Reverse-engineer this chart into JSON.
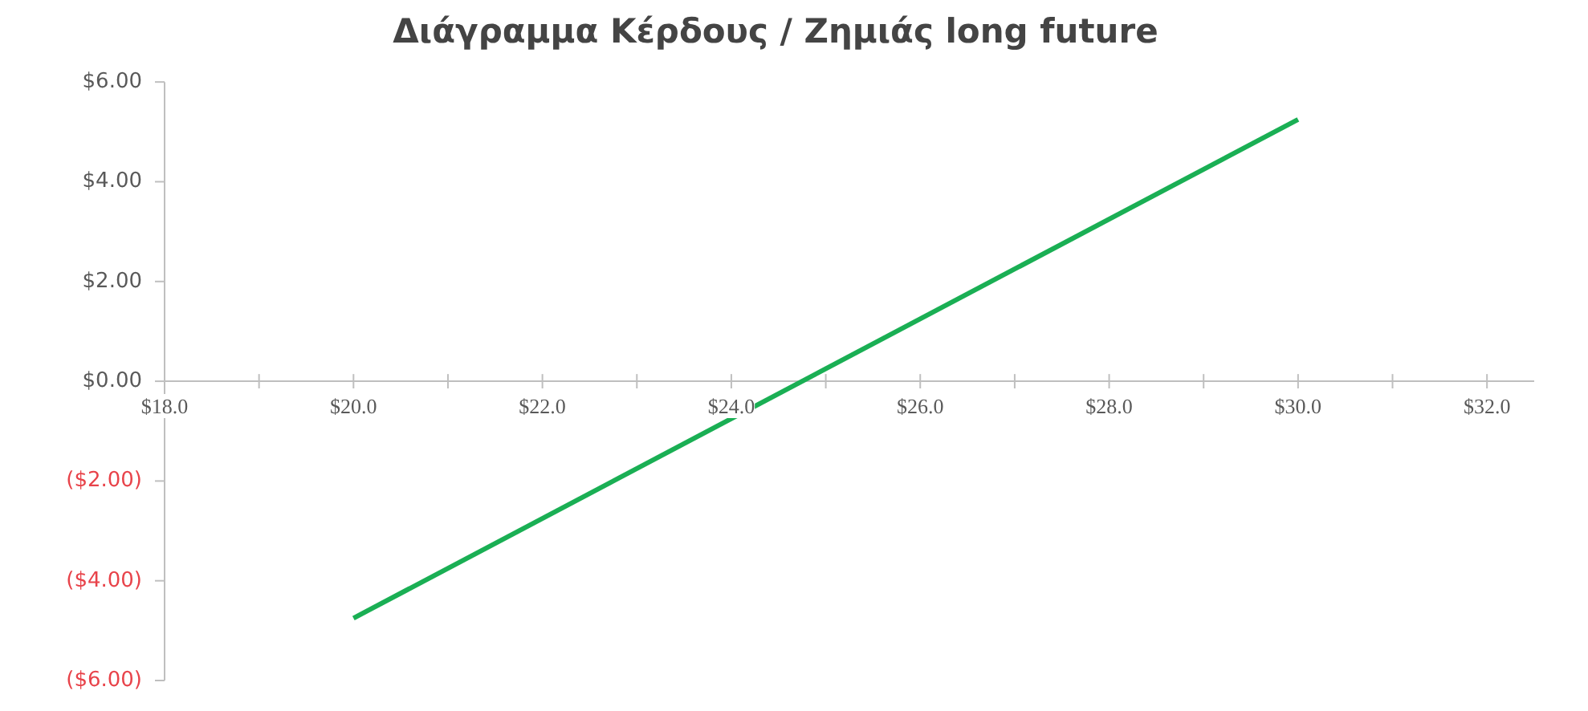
{
  "chart_data": {
    "type": "line",
    "title": "Διάγραμμα Κέρδους / Ζημιάς long future",
    "x": [
      20,
      30
    ],
    "series": [
      {
        "color": "#1aaf54",
        "values": [
          -4.75,
          5.25
        ]
      }
    ],
    "xlim": [
      18,
      32.5
    ],
    "xticks": [
      {
        "value": 18,
        "label": "$18.0"
      },
      {
        "value": 19,
        "label": null
      },
      {
        "value": 20,
        "label": "$20.0"
      },
      {
        "value": 21,
        "label": null
      },
      {
        "value": 22,
        "label": "$22.0"
      },
      {
        "value": 23,
        "label": null
      },
      {
        "value": 24,
        "label": "$24.0"
      },
      {
        "value": 25,
        "label": null
      },
      {
        "value": 26,
        "label": "$26.0"
      },
      {
        "value": 27,
        "label": null
      },
      {
        "value": 28,
        "label": "$28.0"
      },
      {
        "value": 29,
        "label": null
      },
      {
        "value": 30,
        "label": "$30.0"
      },
      {
        "value": 31,
        "label": null
      },
      {
        "value": 32,
        "label": "$32.0"
      }
    ],
    "ylim": [
      -6,
      6
    ],
    "yticks": [
      {
        "value": -6,
        "label": "($6.00)"
      },
      {
        "value": -4,
        "label": "($4.00)"
      },
      {
        "value": -2,
        "label": "($2.00)"
      },
      {
        "value": 0,
        "label": "$0.00"
      },
      {
        "value": 2,
        "label": "$2.00"
      },
      {
        "value": 4,
        "label": "$4.00"
      },
      {
        "value": 6,
        "label": "$6.00"
      }
    ],
    "grid": false,
    "marker": "none",
    "line_style": "solid"
  }
}
